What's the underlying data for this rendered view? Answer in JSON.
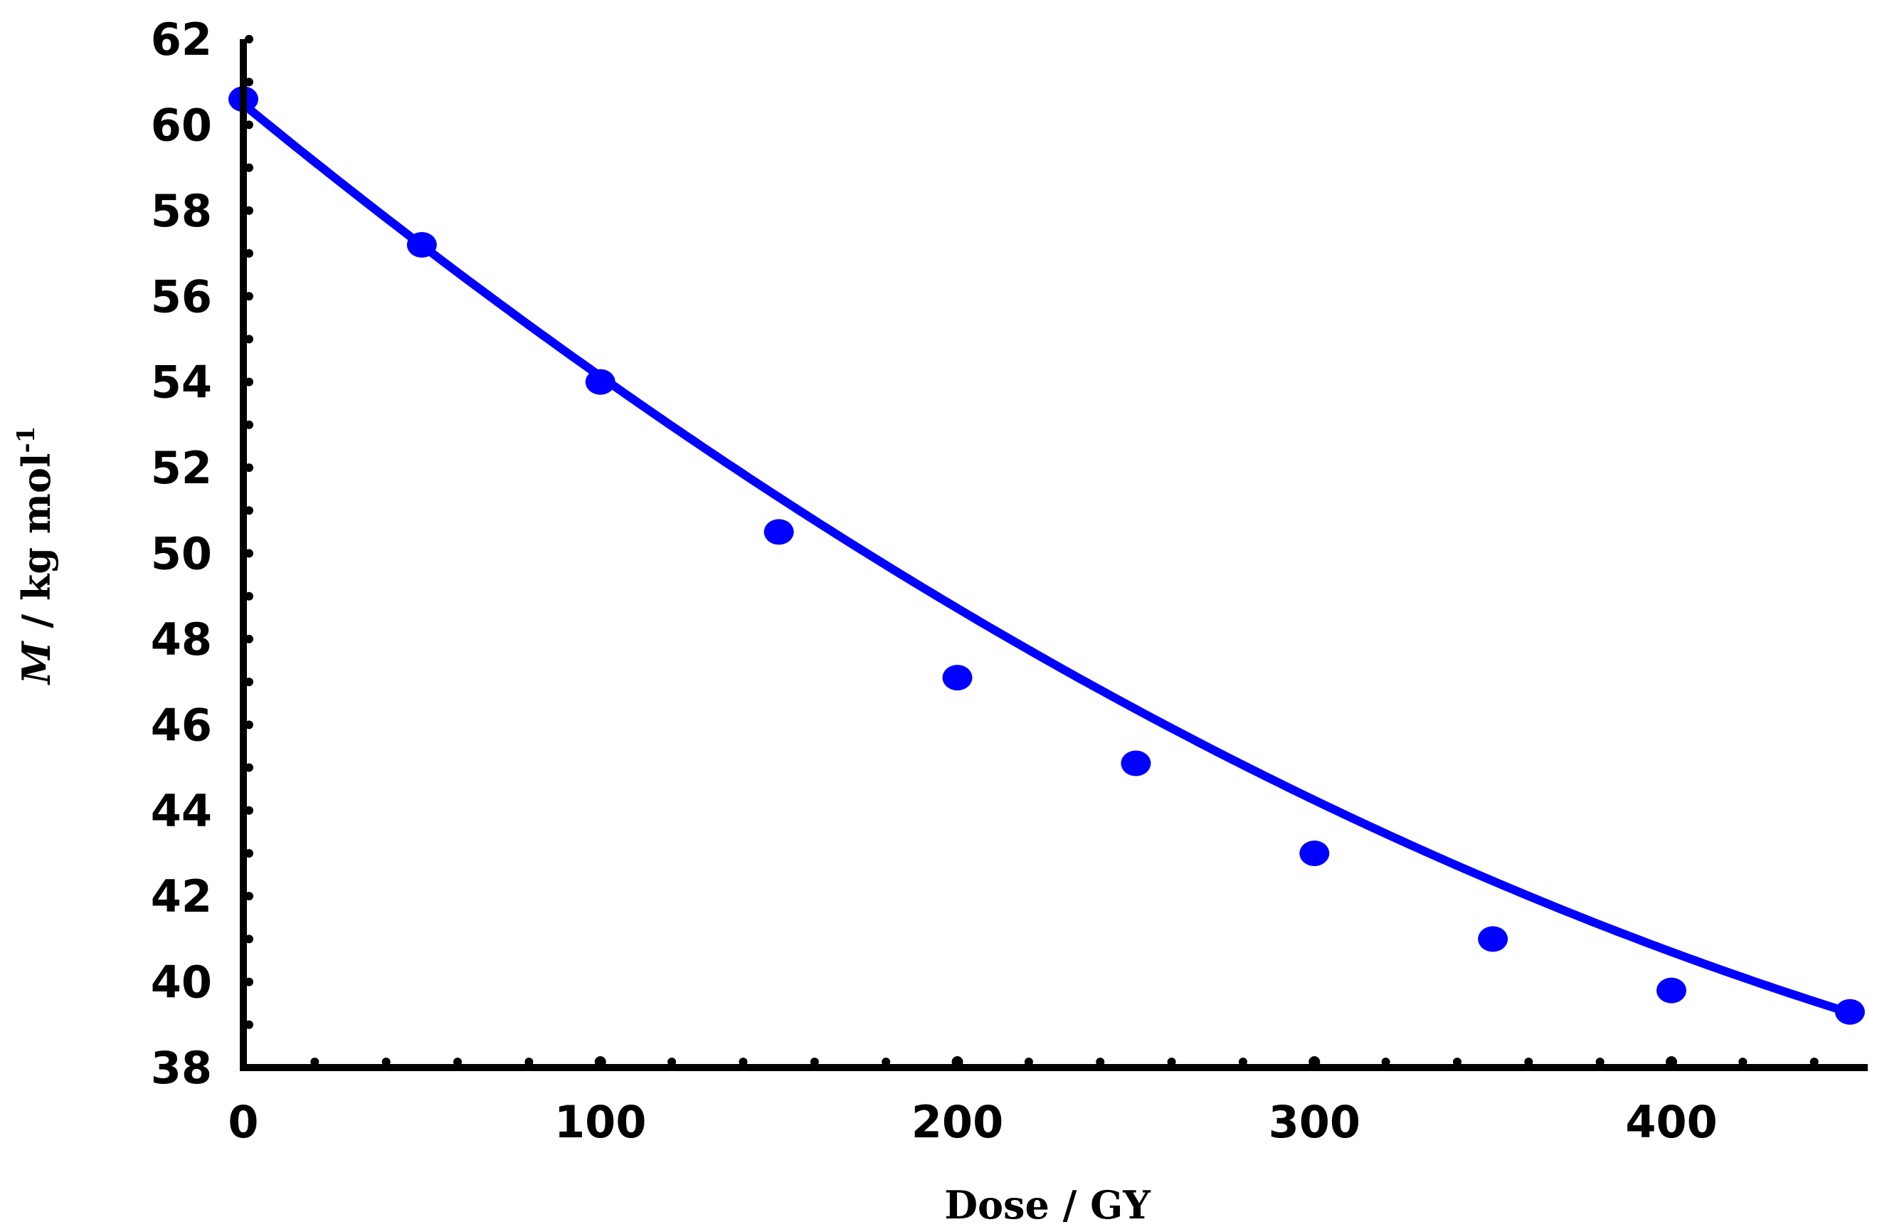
{
  "chart_data": {
    "type": "line",
    "title": "",
    "xlabel": "Dose / GY",
    "ylabel_symbol": "M",
    "ylabel_rest": " / kg mol",
    "ylabel_superscript": "-1",
    "xlim": [
      0,
      455
    ],
    "ylim": [
      38,
      62
    ],
    "xticks": [
      0,
      100,
      200,
      300,
      400
    ],
    "yticks": [
      38,
      40,
      42,
      44,
      46,
      48,
      50,
      52,
      54,
      56,
      58,
      60,
      62
    ],
    "xminor_step": 20,
    "yminor_step": 1,
    "grid": false,
    "legend": "none",
    "series": [
      {
        "color": "#0000ff",
        "x": [
          0,
          50,
          100,
          150,
          200,
          250,
          300,
          350,
          400,
          450
        ],
        "y": [
          60.6,
          57.2,
          54.0,
          50.5,
          47.1,
          45.1,
          43.0,
          41.0,
          39.8,
          39.3
        ]
      }
    ],
    "fit": {
      "color": "#0000ff",
      "coefficients": [
        60.48,
        -0.06817,
        4.68e-05
      ]
    }
  }
}
